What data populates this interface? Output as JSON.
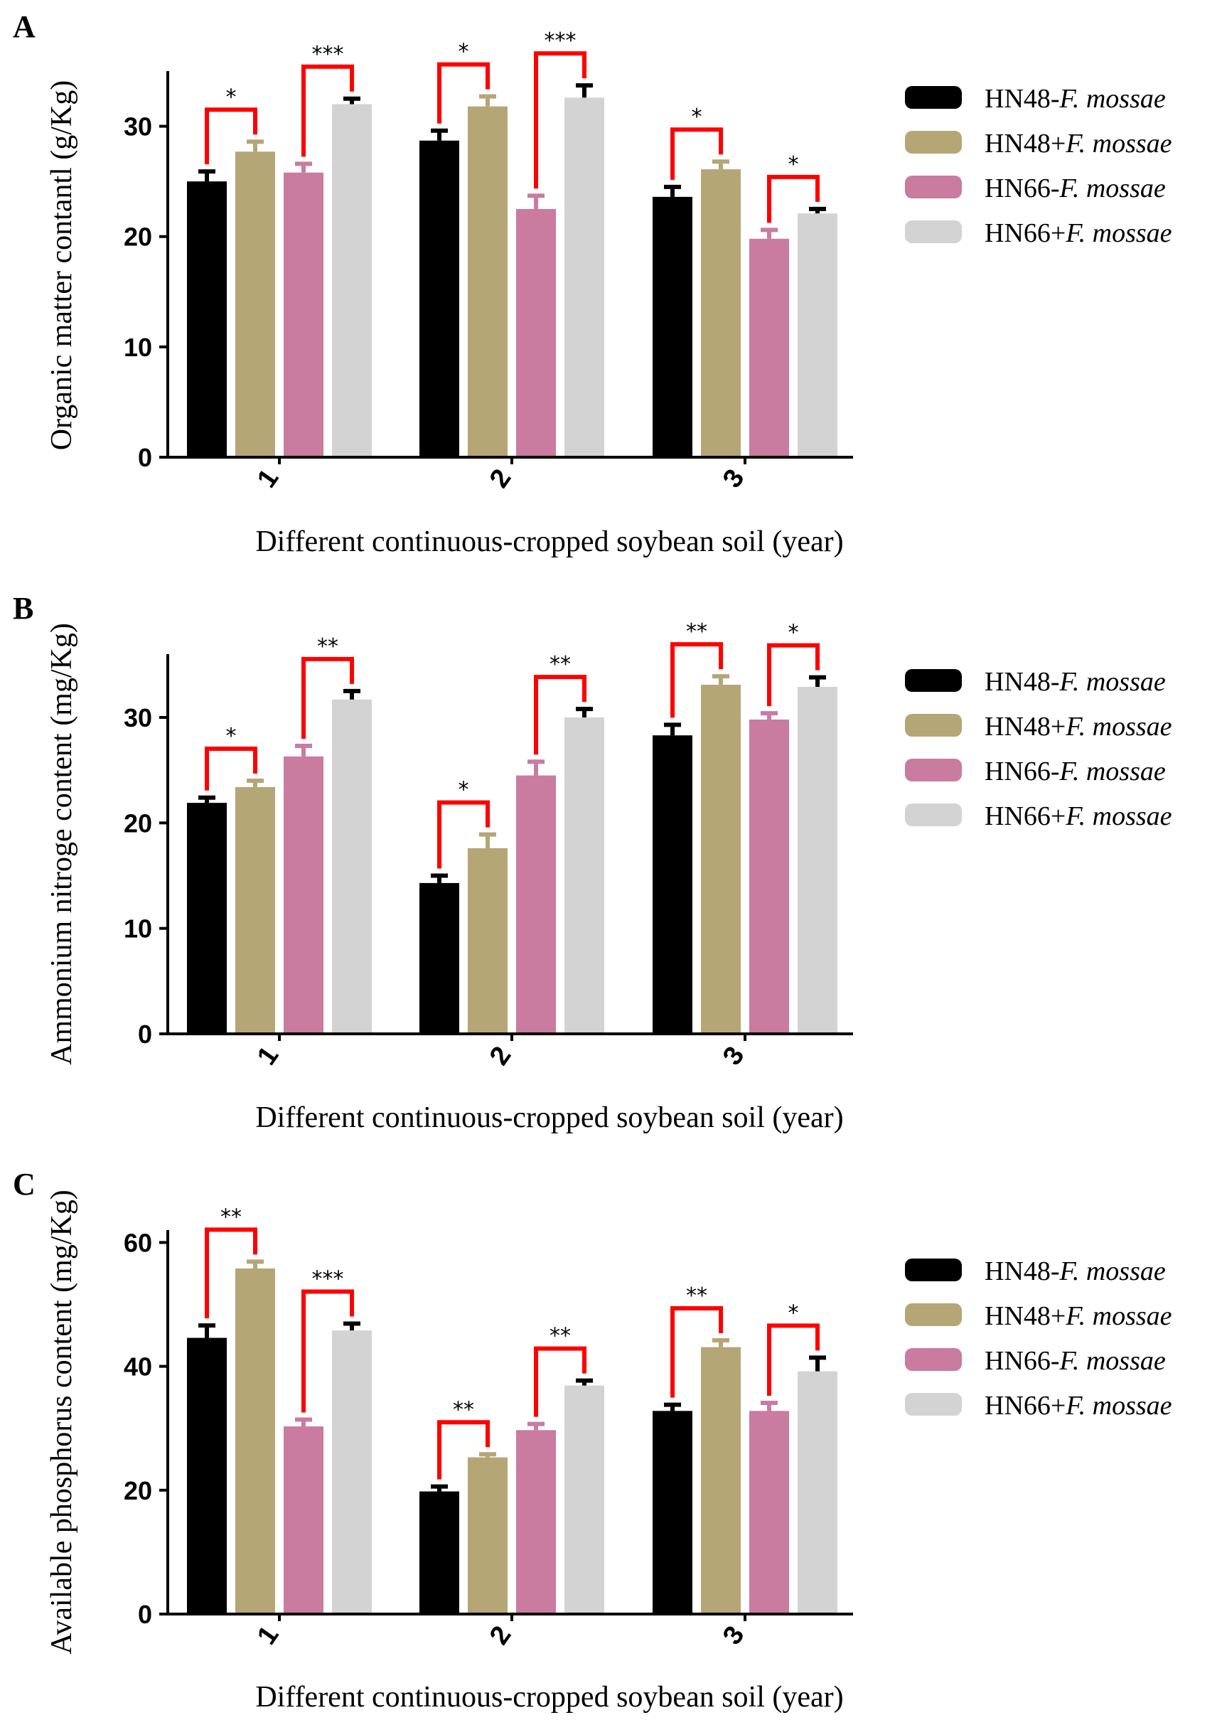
{
  "colors": {
    "HN48-F. mossae": "#000000",
    "HN48+F. mossae": "#b5a676",
    "HN66-F. mossae": "#c97ba0",
    "HN66+F. mossae": "#d3d3d3",
    "bracket": "#ff0000",
    "axis": "#000000"
  },
  "chart_data": [
    {
      "panel": "A",
      "type": "bar",
      "title": "",
      "xlabel": "Different continuous-cropped soybean soil (year)",
      "ylabel": "Organic matter contantl  (g/Kg)",
      "ylim": [
        0,
        35
      ],
      "yticks": [
        0,
        10,
        20,
        30
      ],
      "categories": [
        "1",
        "2",
        "3"
      ],
      "series": [
        {
          "name": "HN48-F. mossae",
          "legend_prefix": "HN48-",
          "legend_italic": "F. mossae",
          "values": [
            25.0,
            28.7,
            23.6
          ],
          "errors": [
            0.9,
            0.9,
            0.9
          ]
        },
        {
          "name": "HN48+F. mossae",
          "legend_prefix": "HN48+",
          "legend_italic": "F. mossae",
          "values": [
            27.7,
            31.8,
            26.1
          ],
          "errors": [
            0.9,
            0.9,
            0.7
          ]
        },
        {
          "name": "HN66-F. mossae",
          "legend_prefix": "HN66-",
          "legend_italic": "F. mossae",
          "values": [
            25.8,
            22.5,
            19.8
          ],
          "errors": [
            0.8,
            1.2,
            0.8
          ]
        },
        {
          "name": "HN66+F. mossae",
          "legend_prefix": "HN66+",
          "legend_italic": "F. mossae",
          "values": [
            32.0,
            32.6,
            22.1
          ],
          "errors": [
            0.5,
            1.1,
            0.4
          ]
        }
      ],
      "significance": [
        {
          "category": 0,
          "pair": [
            0,
            1
          ],
          "label": "*"
        },
        {
          "category": 0,
          "pair": [
            2,
            3
          ],
          "label": "***"
        },
        {
          "category": 1,
          "pair": [
            0,
            1
          ],
          "label": "*"
        },
        {
          "category": 1,
          "pair": [
            2,
            3
          ],
          "label": "***"
        },
        {
          "category": 2,
          "pair": [
            0,
            1
          ],
          "label": "*"
        },
        {
          "category": 2,
          "pair": [
            2,
            3
          ],
          "label": "*"
        }
      ]
    },
    {
      "panel": "B",
      "type": "bar",
      "title": "",
      "xlabel": "Different continuous-cropped soybean soil (year)",
      "ylabel": "Ammonium nitroge content (mg/Kg)",
      "ylim": [
        0,
        36
      ],
      "yticks": [
        0,
        10,
        20,
        30
      ],
      "categories": [
        "1",
        "2",
        "3"
      ],
      "series": [
        {
          "name": "HN48-F. mossae",
          "legend_prefix": "HN48-",
          "legend_italic": "F. mossae",
          "values": [
            21.9,
            14.3,
            28.3
          ],
          "errors": [
            0.5,
            0.7,
            1.0
          ]
        },
        {
          "name": "HN48+F. mossae",
          "legend_prefix": "HN48+",
          "legend_italic": "F. mossae",
          "values": [
            23.4,
            17.6,
            33.1
          ],
          "errors": [
            0.6,
            1.3,
            0.8
          ]
        },
        {
          "name": "HN66-F. mossae",
          "legend_prefix": "HN66-",
          "legend_italic": "F. mossae",
          "values": [
            26.3,
            24.5,
            29.8
          ],
          "errors": [
            1.0,
            1.3,
            0.6
          ]
        },
        {
          "name": "HN66+F. mossae",
          "legend_prefix": "HN66+",
          "legend_italic": "F. mossae",
          "values": [
            31.7,
            30.0,
            32.9
          ],
          "errors": [
            0.8,
            0.8,
            0.9
          ]
        }
      ],
      "significance": [
        {
          "category": 0,
          "pair": [
            0,
            1
          ],
          "label": "*"
        },
        {
          "category": 0,
          "pair": [
            2,
            3
          ],
          "label": "**"
        },
        {
          "category": 1,
          "pair": [
            0,
            1
          ],
          "label": "*"
        },
        {
          "category": 1,
          "pair": [
            2,
            3
          ],
          "label": "**"
        },
        {
          "category": 2,
          "pair": [
            0,
            1
          ],
          "label": "**"
        },
        {
          "category": 2,
          "pair": [
            2,
            3
          ],
          "label": "*"
        }
      ]
    },
    {
      "panel": "C",
      "type": "bar",
      "title": "",
      "xlabel": "Different continuous-cropped soybean soil (year)",
      "ylabel": "Available phosphorus content  (mg/Kg)",
      "ylim": [
        0,
        62
      ],
      "yticks": [
        0,
        20,
        40,
        60
      ],
      "categories": [
        "1",
        "2",
        "3"
      ],
      "series": [
        {
          "name": "HN48-F. mossae",
          "legend_prefix": "HN48-",
          "legend_italic": "F. mossae",
          "values": [
            44.6,
            19.8,
            32.8
          ],
          "errors": [
            2.0,
            0.8,
            1.0
          ]
        },
        {
          "name": "HN48+F. mossae",
          "legend_prefix": "HN48+",
          "legend_italic": "F. mossae",
          "values": [
            55.8,
            25.3,
            43.1
          ],
          "errors": [
            1.1,
            0.5,
            1.1
          ]
        },
        {
          "name": "HN66-F. mossae",
          "legend_prefix": "HN66-",
          "legend_italic": "F. mossae",
          "values": [
            30.3,
            29.7,
            32.8
          ],
          "errors": [
            1.1,
            1.0,
            1.3
          ]
        },
        {
          "name": "HN66+F. mossae",
          "legend_prefix": "HN66+",
          "legend_italic": "F. mossae",
          "values": [
            45.8,
            36.9,
            39.2
          ],
          "errors": [
            1.1,
            0.8,
            2.2
          ]
        }
      ],
      "significance": [
        {
          "category": 0,
          "pair": [
            0,
            1
          ],
          "label": "**"
        },
        {
          "category": 0,
          "pair": [
            2,
            3
          ],
          "label": "***"
        },
        {
          "category": 1,
          "pair": [
            0,
            1
          ],
          "label": "**"
        },
        {
          "category": 1,
          "pair": [
            2,
            3
          ],
          "label": "**"
        },
        {
          "category": 2,
          "pair": [
            0,
            1
          ],
          "label": "**"
        },
        {
          "category": 2,
          "pair": [
            2,
            3
          ],
          "label": "*"
        }
      ]
    }
  ]
}
